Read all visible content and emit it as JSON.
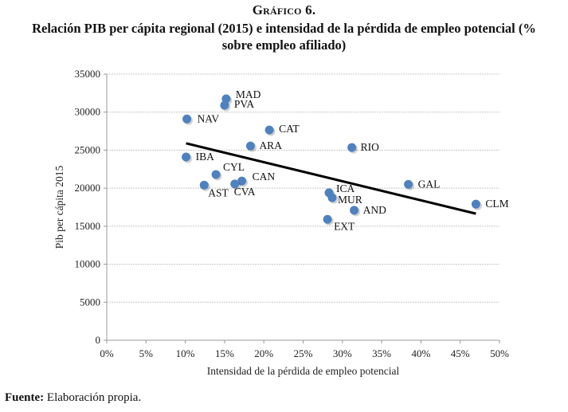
{
  "figure": {
    "label": "Gráfico 6.",
    "title": "Relación PIB per cápita regional (2015) e intensidad de la pérdida de empleo potencial (% sobre empleo afiliado)",
    "source_label": "Fuente:",
    "source_text": " Elaboración propia."
  },
  "colors": {
    "point": "#4f81bd",
    "trendline": "#000000",
    "gridline": "#c8c8c8"
  },
  "chart_data": {
    "type": "scatter",
    "title": "Relación PIB per cápita regional (2015) e intensidad de la pérdida de empleo potencial (% sobre empleo afiliado)",
    "xlabel": "Intensidad de la pérdida de empleo potencial",
    "ylabel": "Pib per cápita 2015",
    "xlim": [
      0,
      0.5
    ],
    "ylim": [
      0,
      35000
    ],
    "xticks": [
      0,
      0.05,
      0.1,
      0.15,
      0.2,
      0.25,
      0.3,
      0.35,
      0.4,
      0.45,
      0.5
    ],
    "xtick_labels": [
      "0%",
      "5%",
      "10%",
      "15%",
      "20%",
      "25%",
      "30%",
      "35%",
      "40%",
      "45%",
      "50%"
    ],
    "yticks": [
      0,
      5000,
      10000,
      15000,
      20000,
      25000,
      30000,
      35000
    ],
    "ytick_labels": [
      "0",
      "5000",
      "10000",
      "15000",
      "20000",
      "25000",
      "30000",
      "35000"
    ],
    "grid": "horizontal",
    "legend": "none",
    "points": [
      {
        "label": "MAD",
        "x": 0.152,
        "y": 31750
      },
      {
        "label": "PVA",
        "x": 0.15,
        "y": 30900
      },
      {
        "label": "NAV",
        "x": 0.102,
        "y": 29100
      },
      {
        "label": "CAT",
        "x": 0.207,
        "y": 27650
      },
      {
        "label": "ARA",
        "x": 0.183,
        "y": 25550
      },
      {
        "label": "RIO",
        "x": 0.312,
        "y": 25350
      },
      {
        "label": "IBA",
        "x": 0.101,
        "y": 24100
      },
      {
        "label": "CYL",
        "x": 0.139,
        "y": 21800
      },
      {
        "label": "CAN",
        "x": 0.172,
        "y": 20950
      },
      {
        "label": "CVA",
        "x": 0.163,
        "y": 20550
      },
      {
        "label": "AST",
        "x": 0.124,
        "y": 20400
      },
      {
        "label": "GAL",
        "x": 0.384,
        "y": 20500
      },
      {
        "label": "ICA",
        "x": 0.283,
        "y": 19400
      },
      {
        "label": "MUR",
        "x": 0.287,
        "y": 18750
      },
      {
        "label": "AND",
        "x": 0.315,
        "y": 17100
      },
      {
        "label": "EXT",
        "x": 0.281,
        "y": 15900
      },
      {
        "label": "CLM",
        "x": 0.47,
        "y": 17900
      }
    ],
    "trendline": {
      "type": "linear",
      "x": [
        0.101,
        0.47
      ],
      "y": [
        25900,
        16650
      ]
    }
  }
}
